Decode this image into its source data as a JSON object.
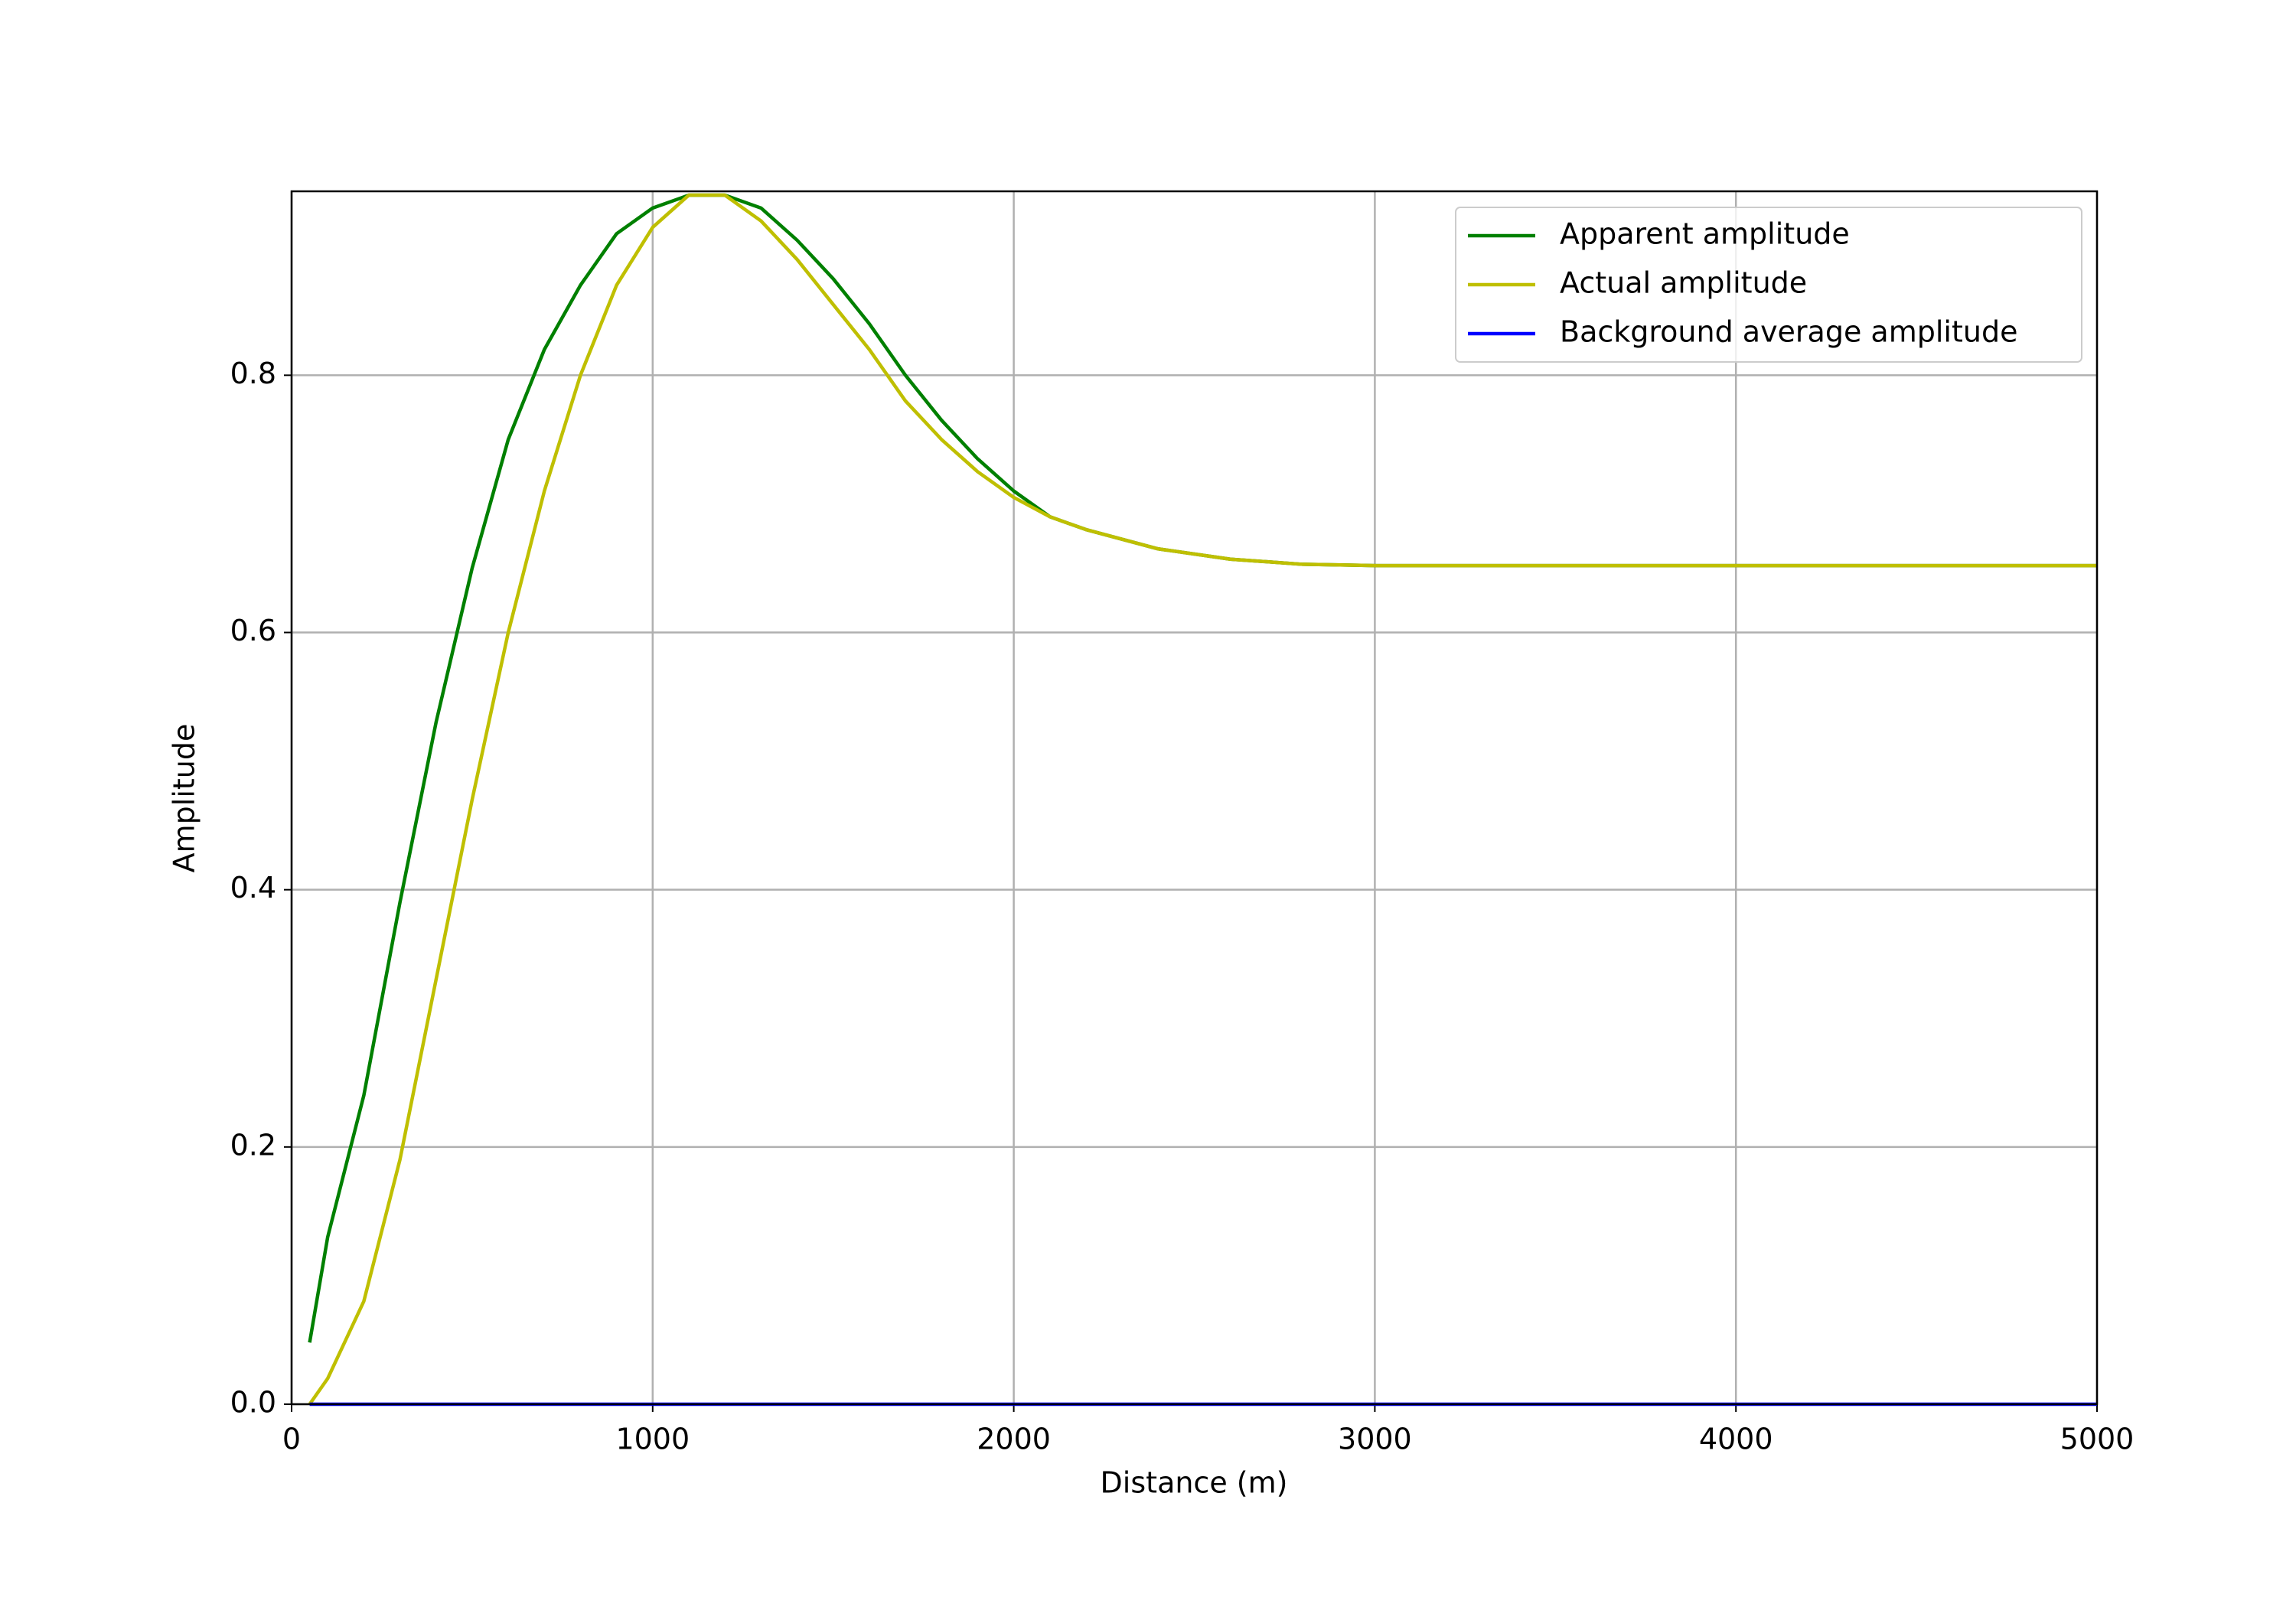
{
  "chart_data": {
    "type": "line",
    "x_label": "Distance (m)",
    "y_label": "Amplitude",
    "x": [
      50,
      100,
      200,
      300,
      400,
      500,
      600,
      700,
      800,
      900,
      1000,
      1100,
      1200,
      1300,
      1400,
      1500,
      1600,
      1700,
      1800,
      1900,
      2000,
      2100,
      2200,
      2400,
      2600,
      2800,
      3000,
      4000,
      5000
    ],
    "series": [
      {
        "name": "Apparent amplitude",
        "color": "#008000",
        "values": [
          0.048,
          0.13,
          0.24,
          0.39,
          0.53,
          0.65,
          0.75,
          0.82,
          0.87,
          0.91,
          0.93,
          0.94,
          0.94,
          0.93,
          0.905,
          0.875,
          0.84,
          0.8,
          0.765,
          0.735,
          0.71,
          0.69,
          0.68,
          0.665,
          0.657,
          0.653,
          0.652,
          0.652,
          0.652
        ]
      },
      {
        "name": "Actual amplitude",
        "color": "#bfbf00",
        "values": [
          0,
          0.02,
          0.08,
          0.19,
          0.33,
          0.47,
          0.6,
          0.71,
          0.8,
          0.87,
          0.915,
          0.94,
          0.94,
          0.92,
          0.89,
          0.855,
          0.82,
          0.78,
          0.75,
          0.725,
          0.705,
          0.69,
          0.68,
          0.665,
          0.657,
          0.653,
          0.652,
          0.652,
          0.652
        ]
      },
      {
        "name": "Background average amplitude",
        "color": "#0000ff",
        "values": [
          0,
          0,
          0,
          0,
          0,
          0,
          0,
          0,
          0,
          0,
          0,
          0,
          0,
          0,
          0,
          0,
          0,
          0,
          0,
          0,
          0,
          0,
          0,
          0,
          0,
          0,
          0,
          0,
          0
        ]
      }
    ],
    "xlim": [
      0,
      5000
    ],
    "xticks": [
      0,
      1000,
      2000,
      3000,
      4000,
      5000
    ],
    "ylim": [
      0,
      0.943
    ],
    "yticks": [
      {
        "value": 0,
        "label": "0.0"
      },
      0.2,
      0.4,
      0.6,
      0.8
    ],
    "grid": true,
    "legend": "upper right"
  }
}
